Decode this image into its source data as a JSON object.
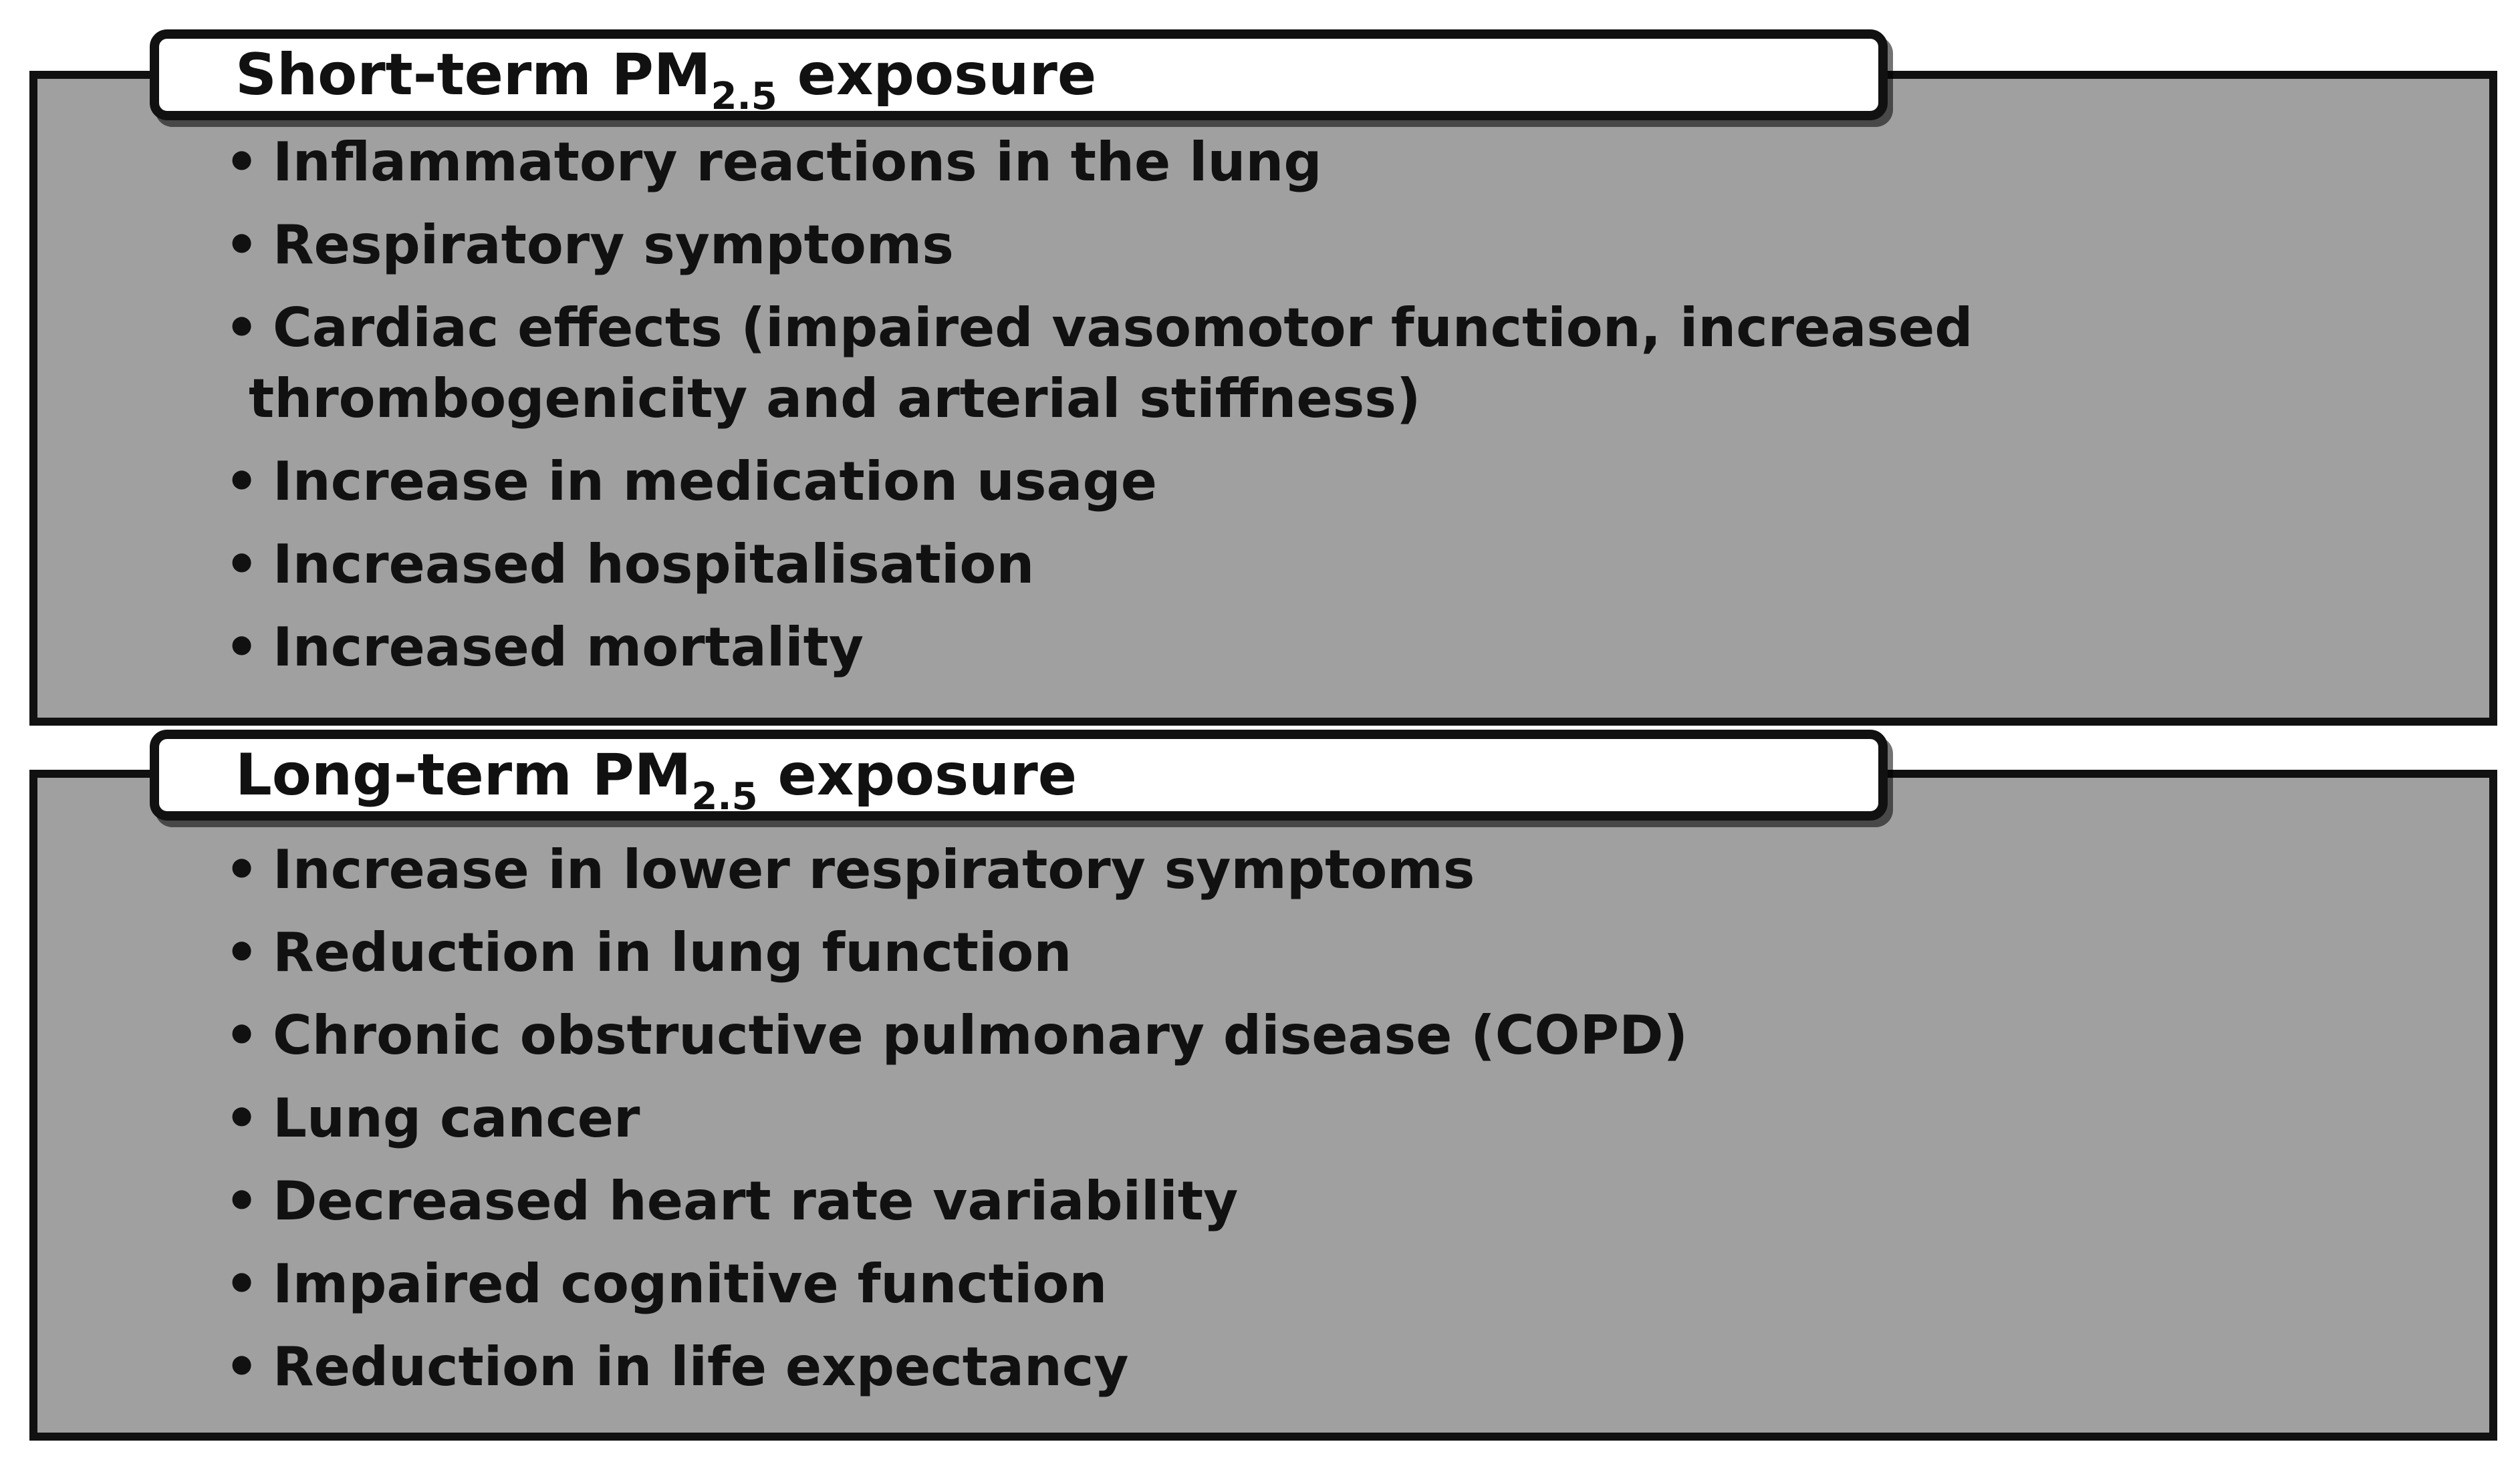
{
  "short_term": {
    "title_prefix": "Short-term PM",
    "title_sub": "2.5",
    "title_suffix": " exposure",
    "bullet": "•",
    "items": [
      "Inflammatory reactions in the lung",
      "Respiratory symptoms",
      "Cardiac effects (impaired vasomotor function, increased",
      "Increase in medication usage",
      "Increased hospitalisation",
      "Increased mortality"
    ],
    "item_3_line2": "thrombogenicity and arterial stiffness)"
  },
  "long_term": {
    "title_prefix": "Long-term PM",
    "title_sub": "2.5",
    "title_suffix": " exposure",
    "bullet": "•",
    "items": [
      "Increase in lower respiratory symptoms",
      "Reduction in lung function",
      "Chronic obstructive pulmonary disease (COPD)",
      "Lung cancer",
      "Decreased heart rate variability",
      "Impaired cognitive function",
      "Reduction in life expectancy"
    ]
  },
  "colors": {
    "panel_fill": "#a0a0a0",
    "border": "#111111",
    "title_fill": "#ffffff",
    "text": "#111111"
  }
}
